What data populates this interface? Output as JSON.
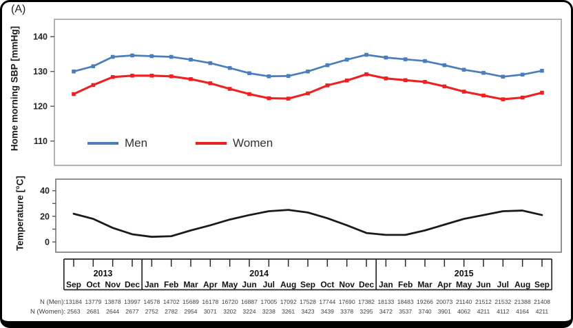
{
  "panel_label": "(A)",
  "chart_data": [
    {
      "type": "line",
      "title": "",
      "xlabel": "",
      "ylabel": "Home morning SBP [mmHg]",
      "ylim": [
        103,
        145
      ],
      "yticks": [
        110,
        120,
        130,
        140
      ],
      "grid": false,
      "marker": "square",
      "legend_position": "inside-bottom-left",
      "categories": [
        "Sep",
        "Oct",
        "Nov",
        "Dec",
        "Jan",
        "Feb",
        "Mar",
        "Apr",
        "May",
        "Jun",
        "Jul",
        "Aug",
        "Sep",
        "Oct",
        "Nov",
        "Dec",
        "Jan",
        "Feb",
        "Mar",
        "Apr",
        "May",
        "Jun",
        "Jul",
        "Aug",
        "Sep"
      ],
      "series": [
        {
          "name": "Men",
          "color": "#4a7ebb",
          "values": [
            130.0,
            131.5,
            134.2,
            134.6,
            134.4,
            134.2,
            133.4,
            132.4,
            131.0,
            129.5,
            128.6,
            128.7,
            130.0,
            131.8,
            133.4,
            134.8,
            134.0,
            133.5,
            133.0,
            131.8,
            130.5,
            129.6,
            128.5,
            129.1,
            130.2
          ]
        },
        {
          "name": "Women",
          "color": "#ee2020",
          "values": [
            123.5,
            126.1,
            128.4,
            128.8,
            128.8,
            128.6,
            127.8,
            126.6,
            125.0,
            123.5,
            122.3,
            122.2,
            123.7,
            126.0,
            127.4,
            129.2,
            128.0,
            127.5,
            127.0,
            125.7,
            124.2,
            123.1,
            122.0,
            122.5,
            123.9
          ]
        }
      ]
    },
    {
      "type": "line",
      "title": "",
      "xlabel": "",
      "ylabel": "Temperature [°C]",
      "ylim": [
        -8,
        49
      ],
      "yticks": [
        0,
        20,
        40
      ],
      "yticks_minor": [
        10,
        30
      ],
      "grid": false,
      "marker": "none",
      "categories": [
        "Sep",
        "Oct",
        "Nov",
        "Dec",
        "Jan",
        "Feb",
        "Mar",
        "Apr",
        "May",
        "Jun",
        "Jul",
        "Aug",
        "Sep",
        "Oct",
        "Nov",
        "Dec",
        "Jan",
        "Feb",
        "Mar",
        "Apr",
        "May",
        "Jun",
        "Jul",
        "Aug",
        "Sep"
      ],
      "series": [
        {
          "name": "Temperature",
          "color": "#1a1a1a",
          "values": [
            22,
            18,
            11,
            6,
            4,
            4.5,
            9,
            13,
            17.5,
            21,
            24,
            25,
            23,
            18.5,
            13,
            7,
            5.5,
            5.5,
            9,
            13.5,
            18,
            21,
            24,
            24.5,
            21
          ]
        }
      ]
    }
  ],
  "x_axis": {
    "groups": [
      {
        "year": "2013",
        "months": [
          "Sep",
          "Oct",
          "Nov",
          "Dec"
        ]
      },
      {
        "year": "2014",
        "months": [
          "Jan",
          "Feb",
          "Mar",
          "Apr",
          "May",
          "Jun",
          "Jul",
          "Aug",
          "Sep",
          "Oct",
          "Nov",
          "Dec"
        ]
      },
      {
        "year": "2015",
        "months": [
          "Jan",
          "Feb",
          "Mar",
          "Apr",
          "May",
          "Jun",
          "Jul",
          "Aug",
          "Sep"
        ]
      }
    ]
  },
  "n_table": {
    "rows": [
      {
        "label": "N (Men):",
        "values": [
          13184,
          13779,
          13878,
          13997,
          14578,
          14702,
          15689,
          16178,
          16720,
          16887,
          17005,
          17092,
          17528,
          17744,
          17690,
          17382,
          18133,
          18483,
          19266,
          20073,
          21140,
          21512,
          21532,
          21388,
          21408
        ]
      },
      {
        "label": "N (Women):",
        "values": [
          2563,
          2681,
          2644,
          2677,
          2752,
          2782,
          2954,
          3071,
          3202,
          3224,
          3238,
          3261,
          3423,
          3439,
          3378,
          3295,
          3472,
          3537,
          3740,
          3901,
          4062,
          4211,
          4112,
          4164,
          4211
        ]
      }
    ]
  },
  "style_colors": {
    "sbp_plot_border": "#a6a6a6",
    "temp_plot_border": "#7f7f7f",
    "axis_table_line": "#262626",
    "text_dark": "#111111",
    "n_text": "#404040"
  }
}
